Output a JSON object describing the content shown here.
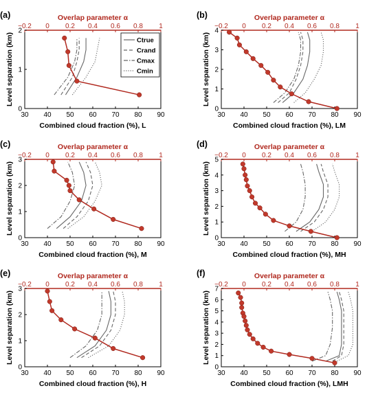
{
  "colors": {
    "alpha": "#b0281e",
    "alpha_marker": "#c1392b",
    "cf_line": "#666666",
    "axis": "#000000"
  },
  "legend": {
    "entries": [
      "Ctrue",
      "Crand",
      "Cmax",
      "Cmin"
    ],
    "placement": "panel-a-right"
  },
  "chart_data": [
    {
      "type": "line",
      "panel": "(a)",
      "xlabel": "Combined cloud fraction (%), L",
      "x2label": "Overlap parameter α",
      "ylabel": "Level separation (km)",
      "xlim": [
        30,
        90
      ],
      "xticks": [
        30,
        40,
        50,
        60,
        70,
        80,
        90
      ],
      "x2lim": [
        -0.2,
        1
      ],
      "x2ticks": [
        -0.2,
        0,
        0.2,
        0.4,
        0.6,
        0.8,
        1
      ],
      "ylim": [
        0,
        2
      ],
      "yticks": [
        0,
        1,
        2
      ],
      "alpha_series": {
        "alpha": [
          0.15,
          0.18,
          0.19,
          0.26,
          0.81
        ],
        "y": [
          1.8,
          1.45,
          1.1,
          0.7,
          0.35
        ]
      },
      "series": [
        {
          "name": "Ctrue",
          "style": "solid",
          "x": [
            48,
            53,
            56,
            57,
            57
          ],
          "y": [
            0.35,
            0.8,
            1.2,
            1.5,
            1.8
          ]
        },
        {
          "name": "Crand",
          "style": "dashed",
          "x": [
            46,
            51,
            53,
            54,
            54
          ],
          "y": [
            0.35,
            0.8,
            1.2,
            1.5,
            1.8
          ]
        },
        {
          "name": "Cmax",
          "style": "dashdot",
          "x": [
            43,
            49,
            52,
            53,
            53
          ],
          "y": [
            0.35,
            0.8,
            1.2,
            1.5,
            1.8
          ]
        },
        {
          "name": "Cmin",
          "style": "dotted",
          "x": [
            51,
            57,
            61,
            62,
            63
          ],
          "y": [
            0.35,
            0.8,
            1.2,
            1.5,
            1.8
          ]
        }
      ]
    },
    {
      "type": "line",
      "panel": "(b)",
      "xlabel": "Combined cloud fraction (%), LM",
      "x2label": "Overlap parameter α",
      "ylabel": "Level separation (km)",
      "xlim": [
        30,
        90
      ],
      "xticks": [
        30,
        40,
        50,
        60,
        70,
        80,
        90
      ],
      "x2lim": [
        -0.2,
        1
      ],
      "x2ticks": [
        -0.2,
        0,
        0.2,
        0.4,
        0.6,
        0.8,
        1
      ],
      "ylim": [
        0,
        4
      ],
      "yticks": [
        0,
        1,
        2,
        3,
        4
      ],
      "alpha_series": {
        "alpha": [
          -0.13,
          -0.06,
          -0.04,
          0.02,
          0.08,
          0.15,
          0.21,
          0.26,
          0.32,
          0.42,
          0.57,
          0.82
        ],
        "y": [
          3.9,
          3.6,
          3.25,
          2.9,
          2.55,
          2.2,
          1.85,
          1.45,
          1.1,
          0.75,
          0.35,
          0.0
        ]
      },
      "alpha_series_note": "",
      "series": [
        {
          "name": "Ctrue",
          "style": "solid",
          "x": [
            57,
            62,
            66,
            68,
            69,
            69,
            68
          ],
          "y": [
            0.3,
            0.8,
            1.5,
            2.2,
            2.9,
            3.5,
            3.9
          ]
        },
        {
          "name": "Crand",
          "style": "dashed",
          "x": [
            55,
            60,
            63,
            65,
            66,
            66,
            65
          ],
          "y": [
            0.3,
            0.8,
            1.5,
            2.2,
            2.9,
            3.5,
            3.9
          ]
        },
        {
          "name": "Cmax",
          "style": "dashdot",
          "x": [
            53,
            58,
            62,
            64,
            65,
            65,
            64
          ],
          "y": [
            0.3,
            0.8,
            1.5,
            2.2,
            2.9,
            3.5,
            3.9
          ]
        },
        {
          "name": "Cmin",
          "style": "dotted",
          "x": [
            62,
            67,
            71,
            74,
            75,
            75,
            74
          ],
          "y": [
            0.3,
            0.8,
            1.5,
            2.2,
            2.9,
            3.5,
            3.9
          ]
        }
      ]
    },
    {
      "type": "line",
      "panel": "(c)",
      "xlabel": "Combined cloud fraction (%), M",
      "x2label": "Overlap parameter α",
      "ylabel": "Level separation (km)",
      "xlim": [
        30,
        90
      ],
      "xticks": [
        30,
        40,
        50,
        60,
        70,
        80,
        90
      ],
      "x2lim": [
        -0.2,
        1
      ],
      "x2ticks": [
        -0.2,
        0,
        0.2,
        0.4,
        0.6,
        0.8,
        1
      ],
      "ylim": [
        0,
        3
      ],
      "yticks": [
        0,
        1,
        2,
        3
      ],
      "alpha_series": {
        "alpha": [
          0.05,
          0.06,
          0.17,
          0.19,
          0.2,
          0.28,
          0.41,
          0.58,
          0.83
        ],
        "y": [
          2.9,
          2.55,
          2.2,
          2.0,
          1.8,
          1.45,
          1.1,
          0.7,
          0.35
        ]
      },
      "series": [
        {
          "name": "Ctrue",
          "style": "solid",
          "x": [
            44,
            50,
            55,
            57,
            56,
            54
          ],
          "y": [
            0.35,
            0.8,
            1.4,
            2.0,
            2.5,
            2.9
          ]
        },
        {
          "name": "Crand",
          "style": "dashed",
          "x": [
            47,
            53,
            58,
            60,
            59,
            57
          ],
          "y": [
            0.35,
            0.8,
            1.4,
            2.0,
            2.5,
            2.9
          ]
        },
        {
          "name": "Cmax",
          "style": "dashdot",
          "x": [
            40,
            46,
            50,
            52,
            51,
            49
          ],
          "y": [
            0.35,
            0.8,
            1.4,
            2.0,
            2.5,
            2.9
          ]
        },
        {
          "name": "Cmin",
          "style": "dotted",
          "x": [
            49,
            56,
            61,
            64,
            63,
            61
          ],
          "y": [
            0.35,
            0.8,
            1.4,
            2.0,
            2.5,
            2.9
          ]
        }
      ]
    },
    {
      "type": "line",
      "panel": "(d)",
      "xlabel": "Combined cloud fraction (%), MH",
      "x2label": "Overlap parameter α",
      "ylabel": "Level separation (km)",
      "xlim": [
        30,
        90
      ],
      "xticks": [
        30,
        40,
        50,
        60,
        70,
        80,
        90
      ],
      "x2lim": [
        -0.2,
        1
      ],
      "x2ticks": [
        -0.2,
        0,
        0.2,
        0.4,
        0.6,
        0.8,
        1
      ],
      "ylim": [
        0,
        5
      ],
      "yticks": [
        0,
        1,
        2,
        3,
        4,
        5
      ],
      "alpha_series": {
        "alpha": [
          -0.01,
          0.0,
          0.01,
          0.02,
          0.03,
          0.05,
          0.07,
          0.1,
          0.14,
          0.19,
          0.26,
          0.4,
          0.59,
          0.82
        ],
        "y": [
          4.7,
          4.4,
          4.0,
          3.7,
          3.3,
          3.0,
          2.6,
          2.2,
          1.9,
          1.5,
          1.1,
          0.75,
          0.4,
          0.0
        ]
      },
      "series": [
        {
          "name": "Ctrue",
          "style": "solid",
          "x": [
            63,
            69,
            73,
            75,
            75,
            73,
            72
          ],
          "y": [
            0.4,
            1.0,
            1.8,
            2.6,
            3.4,
            4.2,
            4.7
          ]
        },
        {
          "name": "Crand",
          "style": "dashed",
          "x": [
            65,
            71,
            75,
            77,
            77,
            75,
            74
          ],
          "y": [
            0.4,
            1.0,
            1.8,
            2.6,
            3.4,
            4.2,
            4.7
          ]
        },
        {
          "name": "Cmax",
          "style": "dashdot",
          "x": [
            58,
            63,
            66,
            67,
            67,
            66,
            65
          ],
          "y": [
            0.4,
            1.0,
            1.8,
            2.6,
            3.4,
            4.2,
            4.7
          ]
        },
        {
          "name": "Cmin",
          "style": "dotted",
          "x": [
            70,
            76,
            80,
            82,
            82,
            80,
            79
          ],
          "y": [
            0.4,
            1.0,
            1.8,
            2.6,
            3.4,
            4.2,
            4.7
          ]
        }
      ]
    },
    {
      "type": "line",
      "panel": "(e)",
      "xlabel": "Combined cloud fraction (%), H",
      "x2label": "Overlap parameter α",
      "ylabel": "Level separation (km)",
      "xlim": [
        30,
        90
      ],
      "xticks": [
        30,
        40,
        50,
        60,
        70,
        80,
        90
      ],
      "x2lim": [
        -0.2,
        1
      ],
      "x2ticks": [
        -0.2,
        0,
        0.2,
        0.4,
        0.6,
        0.8,
        1
      ],
      "ylim": [
        0,
        3
      ],
      "yticks": [
        0,
        1,
        2,
        3
      ],
      "alpha_series": {
        "alpha": [
          0.0,
          0.02,
          0.04,
          0.12,
          0.24,
          0.42,
          0.58,
          0.84
        ],
        "y": [
          2.9,
          2.5,
          2.15,
          1.8,
          1.45,
          1.1,
          0.7,
          0.35
        ]
      },
      "series": [
        {
          "name": "Ctrue",
          "style": "solid",
          "x": [
            53,
            61,
            66,
            68,
            68,
            67
          ],
          "y": [
            0.35,
            0.8,
            1.4,
            2.0,
            2.5,
            2.9
          ]
        },
        {
          "name": "Crand",
          "style": "dashed",
          "x": [
            55,
            63,
            68,
            70,
            70,
            69
          ],
          "y": [
            0.35,
            0.8,
            1.4,
            2.0,
            2.5,
            2.9
          ]
        },
        {
          "name": "Cmax",
          "style": "dashdot",
          "x": [
            50,
            57,
            62,
            64,
            64,
            64
          ],
          "y": [
            0.35,
            0.8,
            1.4,
            2.0,
            2.5,
            2.9
          ]
        },
        {
          "name": "Cmin",
          "style": "dotted",
          "x": [
            58,
            67,
            72,
            74,
            74,
            73
          ],
          "y": [
            0.35,
            0.8,
            1.4,
            2.0,
            2.5,
            2.9
          ]
        }
      ]
    },
    {
      "type": "line",
      "panel": "(f)",
      "xlabel": "Combined cloud fraction (%), LMH",
      "x2label": "Overlap parameter α",
      "ylabel": "Level separation (km)",
      "xlim": [
        30,
        90
      ],
      "xticks": [
        30,
        40,
        50,
        60,
        70,
        80,
        90
      ],
      "x2lim": [
        -0.2,
        1
      ],
      "x2ticks": [
        -0.2,
        0,
        0.2,
        0.4,
        0.6,
        0.8,
        1
      ],
      "ylim": [
        0,
        7
      ],
      "yticks": [
        0,
        1,
        2,
        3,
        4,
        5,
        6,
        7
      ],
      "alpha_series": {
        "alpha": [
          -0.05,
          -0.03,
          -0.02,
          -0.02,
          -0.01,
          0.0,
          0.01,
          0.02,
          0.03,
          0.05,
          0.08,
          0.12,
          0.17,
          0.24,
          0.4,
          0.6,
          0.8
        ],
        "y": [
          6.6,
          6.2,
          5.7,
          5.3,
          4.8,
          4.5,
          4.1,
          3.7,
          3.3,
          2.9,
          2.5,
          2.1,
          1.75,
          1.4,
          1.1,
          0.75,
          0.35
        ]
      },
      "series": [
        {
          "name": "Ctrue",
          "style": "solid",
          "x": [
            76,
            82,
            83,
            83,
            83,
            82,
            81
          ],
          "y": [
            0.5,
            1.0,
            2.0,
            3.5,
            5.0,
            6.0,
            6.7
          ]
        },
        {
          "name": "Crand",
          "style": "dashed",
          "x": [
            79,
            83,
            84,
            84,
            84,
            83,
            82
          ],
          "y": [
            0.5,
            1.0,
            2.0,
            3.5,
            5.0,
            6.0,
            6.7
          ]
        },
        {
          "name": "Cmax",
          "style": "dashdot",
          "x": [
            70,
            76,
            78,
            79,
            79,
            78,
            77
          ],
          "y": [
            0.5,
            1.0,
            2.0,
            3.5,
            5.0,
            6.0,
            6.7
          ]
        },
        {
          "name": "Cmin",
          "style": "dotted",
          "x": [
            81,
            86,
            88,
            88,
            88,
            87,
            86
          ],
          "y": [
            0.5,
            1.0,
            2.0,
            3.5,
            5.0,
            6.0,
            6.7
          ]
        }
      ]
    }
  ]
}
